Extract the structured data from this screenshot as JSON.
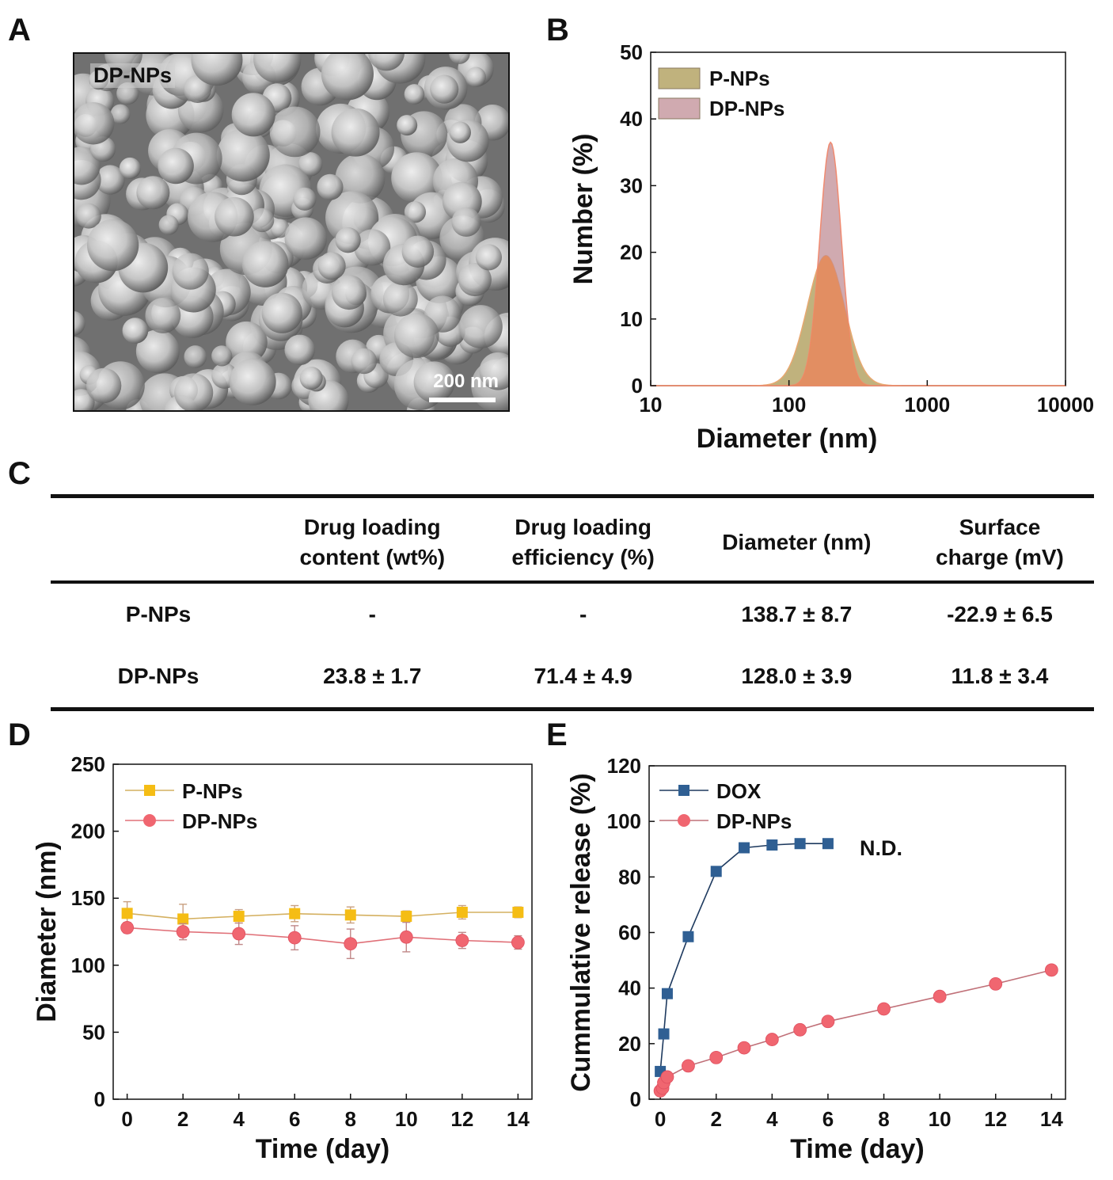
{
  "panels": {
    "A": "A",
    "B": "B",
    "C": "C",
    "D": "D",
    "E": "E"
  },
  "sem_image": {
    "label": "DP-NPs",
    "scale_bar": "200 nm"
  },
  "chart_data": [
    {
      "id": "B",
      "type": "area",
      "xscale": "log",
      "xlabel": "Diameter (nm)",
      "ylabel": "Number (%)",
      "xlim": [
        10,
        10000
      ],
      "ylim": [
        0,
        50
      ],
      "xticks": [
        10,
        100,
        1000,
        10000
      ],
      "xtick_labels": [
        "10",
        "100",
        "1000",
        "10000"
      ],
      "yticks": [
        0,
        10,
        20,
        30,
        40,
        50
      ],
      "legend": "top-left",
      "series": [
        {
          "name": "P-NPs",
          "color": "#b5a466",
          "peak_x": 185,
          "peak_y": 19.5,
          "log_sigma": 0.135
        },
        {
          "name": "DP-NPs",
          "color": "#c08e96",
          "peak_x": 200,
          "peak_y": 36.5,
          "log_sigma": 0.078
        }
      ]
    },
    {
      "id": "C",
      "type": "table",
      "columns": [
        "",
        "Drug loading\ncontent (wt%)",
        "Drug loading\nefficiency (%)",
        "Diameter (nm)",
        "Surface\ncharge (mV)"
      ],
      "rows": [
        [
          "P-NPs",
          "-",
          "-",
          "138.7 ± 8.7",
          "-22.9 ± 6.5"
        ],
        [
          "DP-NPs",
          "23.8 ± 1.7",
          "71.4 ± 4.9",
          "128.0 ± 3.9",
          "11.8 ± 3.4"
        ]
      ]
    },
    {
      "id": "D",
      "type": "line",
      "xlabel": "Time (day)",
      "ylabel": "Diameter (nm)",
      "xlim": [
        -0.5,
        14.5
      ],
      "ylim": [
        0,
        250
      ],
      "xticks": [
        0,
        2,
        4,
        6,
        8,
        10,
        12,
        14
      ],
      "yticks": [
        0,
        50,
        100,
        150,
        200,
        250
      ],
      "legend": "top-left",
      "series": [
        {
          "name": "P-NPs",
          "marker": "square",
          "color": "#f5bd14",
          "x": [
            0,
            2,
            4,
            6,
            8,
            10,
            12,
            14
          ],
          "y": [
            138.7,
            134.5,
            136.5,
            138.5,
            137.5,
            136.5,
            139.5,
            139.5
          ],
          "err": [
            8.7,
            11,
            5,
            6,
            6,
            4,
            5,
            4
          ]
        },
        {
          "name": "DP-NPs",
          "marker": "circle",
          "color": "#f06670",
          "x": [
            0,
            2,
            4,
            6,
            8,
            10,
            12,
            14
          ],
          "y": [
            128.0,
            125,
            123.5,
            120.5,
            116,
            121,
            118.5,
            117
          ],
          "err": [
            3.9,
            6,
            8,
            9,
            11,
            11,
            6,
            5
          ]
        }
      ]
    },
    {
      "id": "E",
      "type": "line",
      "xlabel": "Time (day)",
      "ylabel": "Cummulative release (%)",
      "xlim": [
        -0.4,
        14.5
      ],
      "ylim": [
        0,
        120
      ],
      "xticks": [
        0,
        2,
        4,
        6,
        8,
        10,
        12,
        14
      ],
      "yticks": [
        0,
        20,
        40,
        60,
        80,
        100,
        120
      ],
      "legend": "top-left",
      "annotation": "N.D.",
      "series": [
        {
          "name": "DOX",
          "marker": "square",
          "color": "#2f5f93",
          "x": [
            0,
            0.125,
            0.25,
            1,
            2,
            3,
            4,
            5,
            6
          ],
          "y": [
            10,
            23.5,
            38,
            58.5,
            82,
            90.5,
            91.5,
            92,
            92
          ]
        },
        {
          "name": "DP-NPs",
          "marker": "circle",
          "color": "#f06670",
          "x": [
            0,
            0.083,
            0.125,
            0.25,
            1,
            2,
            3,
            4,
            5,
            6,
            8,
            10,
            12,
            14
          ],
          "y": [
            3,
            4,
            6,
            8,
            12,
            15,
            18.5,
            21.5,
            25,
            28,
            32.5,
            37,
            41.5,
            46.5
          ]
        }
      ]
    }
  ]
}
